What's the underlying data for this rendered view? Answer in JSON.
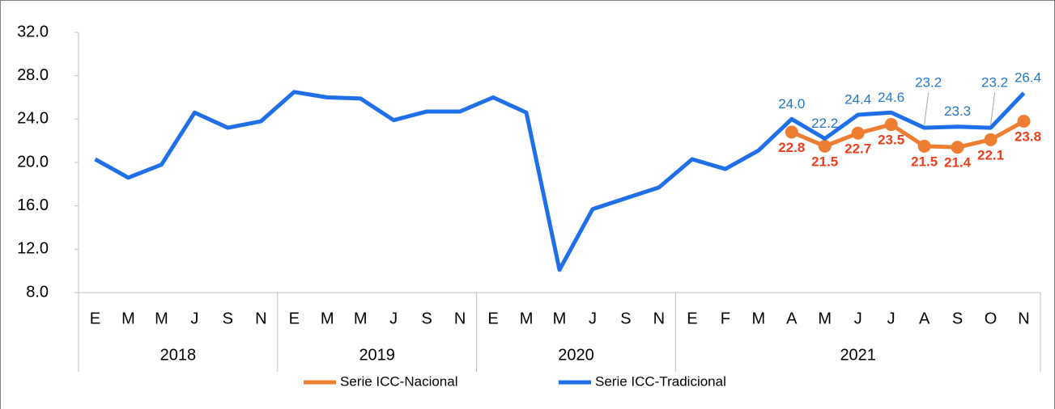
{
  "chart_data": {
    "type": "line",
    "categories": [
      "E",
      "M",
      "M",
      "J",
      "S",
      "N",
      "E",
      "M",
      "M",
      "J",
      "S",
      "N",
      "E",
      "M",
      "M",
      "J",
      "S",
      "N",
      "E",
      "F",
      "M",
      "A",
      "M",
      "J",
      "J",
      "A",
      "S",
      "O",
      "N"
    ],
    "groups": [
      {
        "label": "2018",
        "span": 6
      },
      {
        "label": "2019",
        "span": 6
      },
      {
        "label": "2020",
        "span": 6
      },
      {
        "label": "2021",
        "span": 11
      }
    ],
    "series": [
      {
        "name": "Serie ICC-Nacional",
        "color": "#ed7d31",
        "label_color": "#e8401c",
        "values": [
          null,
          null,
          null,
          null,
          null,
          null,
          null,
          null,
          null,
          null,
          null,
          null,
          null,
          null,
          null,
          null,
          null,
          null,
          null,
          null,
          null,
          22.8,
          21.5,
          22.7,
          23.5,
          21.5,
          21.4,
          22.1,
          23.8
        ],
        "value_labels": [
          null,
          null,
          null,
          null,
          null,
          null,
          null,
          null,
          null,
          null,
          null,
          null,
          null,
          null,
          null,
          null,
          null,
          null,
          null,
          null,
          null,
          "22.8",
          "21.5",
          "22.7",
          "23.5",
          "21.5",
          "21.4",
          "22.1",
          "23.8"
        ]
      },
      {
        "name": "Serie ICC-Tradicional",
        "color": "#1f6fe8",
        "label_color": "#1f78c8",
        "values": [
          20.3,
          18.6,
          19.8,
          24.6,
          23.2,
          23.8,
          26.5,
          26.0,
          25.9,
          23.9,
          24.7,
          24.7,
          26.0,
          24.6,
          10.1,
          15.7,
          16.7,
          17.7,
          20.3,
          19.4,
          21.1,
          24.0,
          22.2,
          24.4,
          24.6,
          23.2,
          23.3,
          23.2,
          26.4
        ],
        "value_labels": [
          null,
          null,
          null,
          null,
          null,
          null,
          null,
          null,
          null,
          null,
          null,
          null,
          null,
          null,
          null,
          null,
          null,
          null,
          null,
          null,
          null,
          "24.0",
          "22.2",
          "24.4",
          "24.6",
          "23.2",
          "23.3",
          "23.2",
          "26.4"
        ]
      }
    ],
    "ylim": [
      8,
      32
    ],
    "yticks": [
      {
        "value": 8,
        "label": "8.0"
      },
      {
        "value": 12,
        "label": "12.0"
      },
      {
        "value": 16,
        "label": "16.0"
      },
      {
        "value": 20,
        "label": "20.0"
      },
      {
        "value": 24,
        "label": "24.0"
      },
      {
        "value": 28,
        "label": "28.0"
      },
      {
        "value": 32,
        "label": "32.0"
      }
    ],
    "grid": false,
    "legend": "bottom"
  }
}
